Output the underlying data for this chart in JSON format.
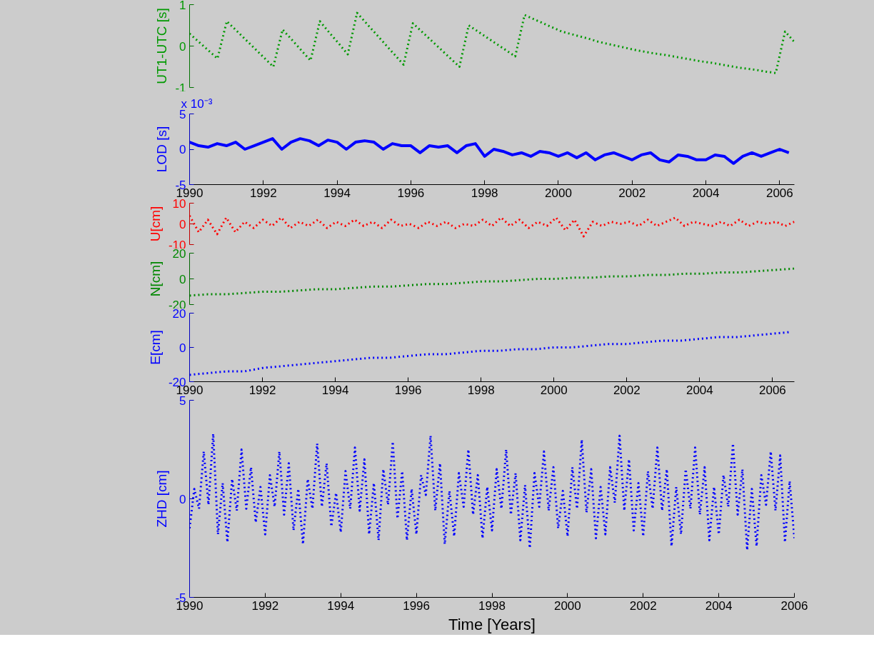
{
  "chart_data": [
    {
      "type": "line",
      "ylabel": "UT1-UTC [s]",
      "line_style": "dotted",
      "tick_labels": "y",
      "ylim": [
        -1,
        1
      ],
      "yticks": [
        -1,
        0,
        1
      ],
      "categories": [
        null,
        null,
        null,
        null,
        null,
        null,
        null,
        null,
        null,
        null,
        null,
        null,
        null,
        null,
        null,
        null,
        null,
        null,
        null,
        null,
        null,
        null,
        null,
        null,
        null,
        null,
        null,
        null,
        null,
        null,
        null,
        null,
        null,
        null,
        null,
        null,
        null,
        null,
        null,
        null,
        null,
        null,
        null,
        null,
        null,
        null,
        null,
        null,
        null,
        null,
        null,
        null,
        null,
        null,
        null,
        null,
        null,
        null,
        null,
        null,
        null,
        null,
        null,
        null,
        null,
        null
      ],
      "series": [
        {
          "color": "#009900",
          "values": [
            0.3,
            0.1,
            -0.1,
            -0.3,
            0.6,
            0.38,
            0.16,
            -0.06,
            -0.28,
            -0.5,
            0.4,
            0.15,
            -0.1,
            -0.35,
            0.6,
            0.33,
            0.07,
            -0.2,
            0.8,
            0.55,
            0.3,
            0.05,
            -0.2,
            -0.45,
            0.55,
            0.34,
            0.13,
            -0.08,
            -0.29,
            -0.5,
            0.5,
            0.35,
            0.2,
            0.05,
            -0.1,
            -0.25,
            0.75,
            0.65,
            0.55,
            0.45,
            0.35,
            0.29,
            0.23,
            0.17,
            0.1,
            0.05,
            0.0,
            -0.05,
            -0.1,
            -0.14,
            -0.18,
            -0.21,
            -0.25,
            -0.29,
            -0.33,
            -0.37,
            -0.4,
            -0.44,
            -0.48,
            -0.52,
            -0.55,
            -0.58,
            -0.62,
            -0.65,
            0.35,
            0.1
          ]
        }
      ]
    },
    {
      "type": "line",
      "ylabel": "LOD [s]",
      "line_style": "solid",
      "annotations": [
        "x 10⁻³"
      ],
      "xlim": [
        1990,
        2006.4
      ],
      "xticks": [
        1990,
        1992,
        1994,
        1996,
        1998,
        2000,
        2002,
        2004,
        2006
      ],
      "ylim": [
        -5,
        5
      ],
      "yticks": [
        -5,
        0,
        5
      ],
      "x": [
        1990.0,
        1990.25,
        1990.5,
        1990.75,
        1991.0,
        1991.25,
        1991.5,
        1991.75,
        1992.0,
        1992.25,
        1992.5,
        1992.75,
        1993.0,
        1993.25,
        1993.5,
        1993.75,
        1994.0,
        1994.25,
        1994.5,
        1994.75,
        1995.0,
        1995.25,
        1995.5,
        1995.75,
        1996.0,
        1996.25,
        1996.5,
        1996.75,
        1997.0,
        1997.25,
        1997.5,
        1997.75,
        1998.0,
        1998.25,
        1998.5,
        1998.75,
        1999.0,
        1999.25,
        1999.5,
        1999.75,
        2000.0,
        2000.25,
        2000.5,
        2000.75,
        2001.0,
        2001.25,
        2001.5,
        2001.75,
        2002.0,
        2002.25,
        2002.5,
        2002.75,
        2003.0,
        2003.25,
        2003.5,
        2003.75,
        2004.0,
        2004.25,
        2004.5,
        2004.75,
        2005.0,
        2005.25,
        2005.5,
        2005.75,
        2006.0,
        2006.25
      ],
      "series": [
        {
          "color": "#0000ff",
          "values": [
            1,
            0.5,
            0.3,
            0.8,
            0.5,
            1,
            0,
            0.5,
            1,
            1.5,
            0,
            1,
            1.5,
            1.2,
            0.5,
            1.3,
            1,
            0,
            1,
            1.2,
            1,
            0,
            0.8,
            0.5,
            0.5,
            -0.5,
            0.5,
            0.3,
            0.5,
            -0.5,
            0.5,
            0.8,
            -1,
            0,
            -0.3,
            -0.8,
            -0.5,
            -1,
            -0.3,
            -0.5,
            -1,
            -0.5,
            -1.2,
            -0.5,
            -1.5,
            -0.8,
            -0.5,
            -1,
            -1.5,
            -0.8,
            -0.5,
            -1.5,
            -1.8,
            -0.8,
            -1,
            -1.5,
            -1.5,
            -0.8,
            -1,
            -2,
            -1,
            -0.5,
            -1,
            -0.5,
            0,
            -0.5
          ]
        }
      ]
    },
    {
      "type": "line",
      "ylabel": "U[cm]",
      "line_style": "dotted",
      "tick_labels": "y",
      "ylim": [
        -10,
        10
      ],
      "yticks": [
        -10,
        0,
        10
      ],
      "categories": [
        null,
        null,
        null,
        null,
        null,
        null,
        null,
        null,
        null,
        null,
        null,
        null,
        null,
        null,
        null,
        null,
        null,
        null,
        null,
        null,
        null,
        null,
        null,
        null,
        null,
        null,
        null,
        null,
        null,
        null,
        null,
        null,
        null,
        null,
        null,
        null,
        null,
        null,
        null,
        null,
        null,
        null,
        null,
        null,
        null,
        null,
        null,
        null,
        null,
        null,
        null,
        null,
        null,
        null,
        null,
        null,
        null,
        null,
        null,
        null,
        null,
        null,
        null,
        null,
        null,
        null,
        null
      ],
      "series": [
        {
          "color": "#ff0000",
          "values": [
            4,
            -4,
            2,
            -5,
            3,
            -4,
            1,
            -2,
            2,
            -1,
            3,
            -2,
            1,
            -1,
            2,
            -2,
            1,
            -1,
            2,
            -1,
            1,
            -2,
            2,
            -1,
            0,
            -2,
            1,
            -1,
            1,
            -2,
            0,
            -1,
            2,
            -1,
            3,
            -1,
            2,
            -2,
            1,
            -1,
            3,
            -3,
            2,
            -6,
            1,
            -1,
            1,
            0,
            1,
            -1,
            2,
            -1,
            1,
            3,
            -1,
            1,
            0,
            -1,
            1,
            -1,
            2,
            -1,
            1,
            0,
            1,
            -1,
            1
          ]
        }
      ]
    },
    {
      "type": "line",
      "ylabel": "N[cm]",
      "line_style": "dotted",
      "tick_labels": "y",
      "ylim": [
        -20,
        20
      ],
      "yticks": [
        -20,
        0,
        20
      ],
      "categories": [
        null,
        null,
        null,
        null,
        null,
        null,
        null,
        null,
        null,
        null,
        null,
        null,
        null,
        null,
        null,
        null,
        null,
        null,
        null,
        null,
        null,
        null,
        null,
        null,
        null,
        null,
        null,
        null,
        null,
        null,
        null,
        null,
        null,
        null
      ],
      "series": [
        {
          "color": "#008800",
          "values": [
            -13,
            -12,
            -12,
            -11,
            -10,
            -10,
            -9,
            -8,
            -8,
            -7,
            -6,
            -6,
            -5,
            -4,
            -4,
            -3,
            -2,
            -2,
            -1,
            0,
            0,
            1,
            1,
            2,
            2,
            3,
            3,
            4,
            4,
            5,
            5,
            6,
            7,
            8
          ]
        }
      ]
    },
    {
      "type": "line",
      "ylabel": "E[cm]",
      "line_style": "dotted",
      "xlim": [
        1990,
        2006.6
      ],
      "xticks": [
        1990,
        1992,
        1994,
        1996,
        1998,
        2000,
        2002,
        2004,
        2006
      ],
      "ylim": [
        -20,
        20
      ],
      "yticks": [
        -20,
        0,
        20
      ],
      "x": [
        1990.0,
        1990.5,
        1991.0,
        1991.5,
        1992.0,
        1992.5,
        1993.0,
        1993.5,
        1994.0,
        1994.5,
        1995.0,
        1995.5,
        1996.0,
        1996.5,
        1997.0,
        1997.5,
        1998.0,
        1998.5,
        1999.0,
        1999.5,
        2000.0,
        2000.5,
        2001.0,
        2001.5,
        2002.0,
        2002.5,
        2003.0,
        2003.5,
        2004.0,
        2004.5,
        2005.0,
        2005.5,
        2006.0,
        2006.5
      ],
      "series": [
        {
          "color": "#0000ff",
          "values": [
            -16,
            -15,
            -14,
            -14,
            -12,
            -11,
            -10,
            -9,
            -8,
            -7,
            -6,
            -6,
            -5,
            -4,
            -4,
            -3,
            -2,
            -2,
            -1,
            -1,
            0,
            0,
            1,
            2,
            2,
            3,
            4,
            4,
            5,
            6,
            6,
            7,
            8,
            9
          ]
        }
      ]
    },
    {
      "type": "line",
      "ylabel": "ZHD [cm]",
      "xlabel": "Time [Years]",
      "line_style": "dotted",
      "xlim": [
        1990,
        2006
      ],
      "xticks": [
        1990,
        1992,
        1994,
        1996,
        1998,
        2000,
        2002,
        2004,
        2006
      ],
      "ylim": [
        -5,
        5
      ],
      "yticks": [
        -5,
        0,
        5
      ],
      "x": [
        1990.0,
        1990.125,
        1990.25,
        1990.375,
        1990.5,
        1990.625,
        1990.75,
        1990.875,
        1991.0,
        1991.125,
        1991.25,
        1991.375,
        1991.5,
        1991.625,
        1991.75,
        1991.875,
        1992.0,
        1992.125,
        1992.25,
        1992.375,
        1992.5,
        1992.625,
        1992.75,
        1992.875,
        1993.0,
        1993.125,
        1993.25,
        1993.375,
        1993.5,
        1993.625,
        1993.75,
        1993.875,
        1994.0,
        1994.125,
        1994.25,
        1994.375,
        1994.5,
        1994.625,
        1994.75,
        1994.875,
        1995.0,
        1995.125,
        1995.25,
        1995.375,
        1995.5,
        1995.625,
        1995.75,
        1995.875,
        1996.0,
        1996.125,
        1996.25,
        1996.375,
        1996.5,
        1996.625,
        1996.75,
        1996.875,
        1997.0,
        1997.125,
        1997.25,
        1997.375,
        1997.5,
        1997.625,
        1997.75,
        1997.875,
        1998.0,
        1998.125,
        1998.25,
        1998.375,
        1998.5,
        1998.625,
        1998.75,
        1998.875,
        1999.0,
        1999.125,
        1999.25,
        1999.375,
        1999.5,
        1999.625,
        1999.75,
        1999.875,
        2000.0,
        2000.125,
        2000.25,
        2000.375,
        2000.5,
        2000.625,
        2000.75,
        2000.875,
        2001.0,
        2001.125,
        2001.25,
        2001.375,
        2001.5,
        2001.625,
        2001.75,
        2001.875,
        2002.0,
        2002.125,
        2002.25,
        2002.375,
        2002.5,
        2002.625,
        2002.75,
        2002.875,
        2003.0,
        2003.125,
        2003.25,
        2003.375,
        2003.5,
        2003.625,
        2003.75,
        2003.875,
        2004.0,
        2004.125,
        2004.25,
        2004.375,
        2004.5,
        2004.625,
        2004.75,
        2004.875,
        2005.0,
        2005.125,
        2005.25,
        2005.375,
        2005.5,
        2005.625,
        2005.75,
        2005.875,
        2006.0
      ],
      "series": [
        {
          "color": "#0000ff",
          "values": [
            -1.5,
            0.5,
            -0.5,
            2.4,
            -0.3,
            3.3,
            -1.8,
            0.8,
            -2.2,
            1.0,
            -0.6,
            2.5,
            -0.5,
            1.6,
            -1.2,
            0.6,
            -1.8,
            1.2,
            -0.4,
            2.4,
            -0.8,
            1.8,
            -1.6,
            0.5,
            -2.3,
            1.0,
            -0.5,
            2.8,
            -0.4,
            1.8,
            -1.4,
            0.3,
            -1.7,
            1.4,
            -0.5,
            2.6,
            -0.6,
            2.0,
            -1.8,
            0.8,
            -2.1,
            1.5,
            -0.3,
            2.9,
            -1.0,
            1.4,
            -2.1,
            0.5,
            -1.8,
            1.2,
            0.2,
            3.2,
            -0.6,
            1.8,
            -2.3,
            0.4,
            -1.9,
            1.3,
            -0.4,
            2.5,
            -0.8,
            1.2,
            -2.0,
            0.6,
            -1.6,
            1.5,
            -0.5,
            2.5,
            -0.8,
            1.3,
            -2.1,
            0.7,
            -2.5,
            1.3,
            -0.4,
            2.4,
            -0.6,
            1.6,
            -1.5,
            0.4,
            -1.9,
            1.6,
            -0.5,
            3.0,
            -0.7,
            1.5,
            -2.0,
            0.6,
            -1.8,
            1.6,
            -0.2,
            3.2,
            -0.6,
            2.0,
            -1.6,
            0.8,
            -1.9,
            1.4,
            -0.5,
            2.6,
            -0.6,
            1.5,
            -2.4,
            0.6,
            -1.8,
            1.5,
            -0.5,
            2.6,
            -0.8,
            1.6,
            -2.1,
            0.6,
            -1.8,
            1.2,
            -0.4,
            2.8,
            -0.8,
            1.5,
            -2.6,
            0.5,
            -2.4,
            1.2,
            -0.3,
            2.4,
            -0.6,
            2.2,
            -2.2,
            0.9,
            -2.0
          ]
        }
      ]
    }
  ]
}
